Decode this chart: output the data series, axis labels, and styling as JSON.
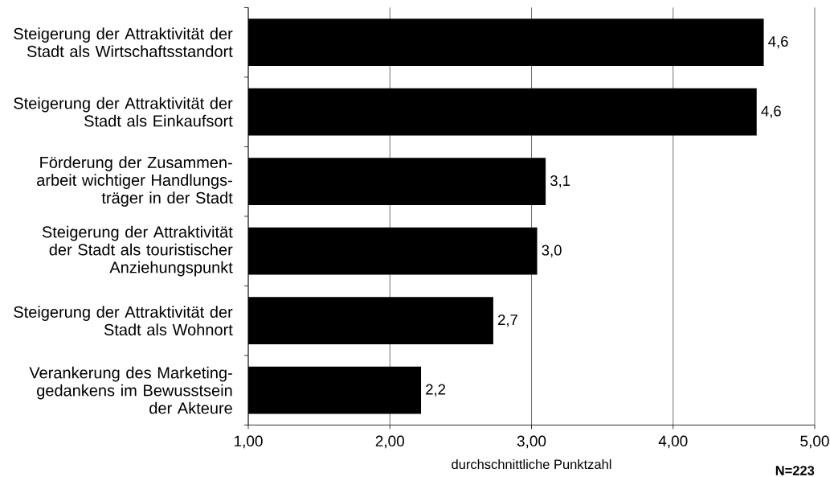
{
  "chart_data": {
    "type": "bar",
    "orientation": "horizontal",
    "categories": [
      "Steigerung der Attraktivität der\nStadt als Wirtschaftsstandort",
      "Steigerung der Attraktivität der\nStadt als Einkaufsort",
      "Förderung der Zusammen-\narbeit wichtiger Handlungs-\nträger in der Stadt",
      "Steigerung der Attraktivität\nder Stadt als touristischer\nAnziehungspunkt",
      "Steigerung der Attraktivität der\nStadt als Wohnort",
      "Verankerung des Marketing-\ngedankens im Bewusstsein\nder Akteure"
    ],
    "values": [
      4.64,
      4.59,
      3.1,
      3.04,
      2.73,
      2.22
    ],
    "color": "#000000",
    "value_labels": [
      "4,6",
      "4,6",
      "3,1",
      "3,0",
      "2,7",
      "2,2"
    ],
    "xlim": [
      1,
      5
    ],
    "xticks": [
      {
        "value": 1,
        "label": "1,00"
      },
      {
        "value": 2,
        "label": "2,00"
      },
      {
        "value": 3,
        "label": "3,00"
      },
      {
        "value": 4,
        "label": "4,00"
      },
      {
        "value": 5,
        "label": "5,00"
      }
    ],
    "xlabel": "durchschnittliche Punktzahl",
    "grid": "x",
    "annotations": [
      "N=223"
    ]
  }
}
